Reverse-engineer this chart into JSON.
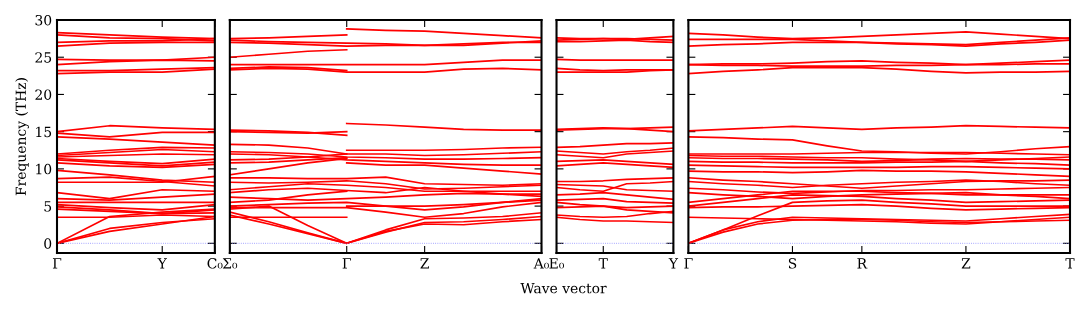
{
  "chart_data": [
    {
      "type": "line",
      "ylabel": "Frequency (THz)",
      "ylim": [
        -1.3,
        30
      ],
      "yticks": [
        0,
        5,
        10,
        15,
        20,
        25,
        30
      ],
      "categories": [
        "Γ",
        null,
        "Y",
        "C₀"
      ],
      "ref_lines": [
        {
          "axis": "y",
          "value": 0,
          "color": "#8080ff",
          "line_style": "dotted"
        }
      ],
      "series": [
        {
          "color": "#ff0000",
          "values": [
            28.3,
            28.0,
            27.7,
            27.5
          ]
        },
        {
          "color": "#ff0000",
          "values": [
            28.0,
            27.6,
            27.5,
            27.2
          ]
        },
        {
          "color": "#ff0000",
          "values": [
            27.0,
            27.2,
            27.2,
            27.5
          ]
        },
        {
          "color": "#ff0000",
          "values": [
            26.5,
            26.9,
            27.0,
            27.0
          ]
        },
        {
          "color": "#ff0000",
          "values": [
            24.7,
            24.6,
            24.6,
            25.0
          ]
        },
        {
          "color": "#ff0000",
          "values": [
            24.0,
            24.4,
            24.6,
            24.5
          ]
        },
        {
          "color": "#ff0000",
          "values": [
            23.2,
            23.2,
            23.4,
            23.6
          ]
        },
        {
          "color": "#ff0000",
          "values": [
            22.8,
            23.0,
            23.0,
            23.4
          ]
        },
        {
          "color": "#ff0000",
          "values": [
            15.0,
            15.8,
            15.5,
            15.3
          ]
        },
        {
          "color": "#ff0000",
          "values": [
            14.8,
            14.3,
            14.9,
            14.9
          ]
        },
        {
          "color": "#ff0000",
          "values": [
            14.3,
            14.0,
            13.6,
            13.2
          ]
        },
        {
          "color": "#ff0000",
          "values": [
            12.0,
            12.5,
            12.9,
            12.8
          ]
        },
        {
          "color": "#ff0000",
          "values": [
            11.8,
            12.2,
            12.6,
            12.3
          ]
        },
        {
          "color": "#ff0000",
          "values": [
            11.6,
            11.8,
            12.0,
            11.9
          ]
        },
        {
          "color": "#ff0000",
          "values": [
            11.4,
            11.0,
            10.7,
            11.3
          ]
        },
        {
          "color": "#ff0000",
          "values": [
            11.2,
            10.8,
            10.4,
            10.9
          ]
        },
        {
          "color": "#ff0000",
          "values": [
            10.8,
            10.4,
            10.2,
            10.6
          ]
        },
        {
          "color": "#ff0000",
          "values": [
            9.8,
            9.2,
            8.5,
            8.2
          ]
        },
        {
          "color": "#ff0000",
          "values": [
            8.7,
            8.9,
            8.3,
            7.7
          ]
        },
        {
          "color": "#ff0000",
          "values": [
            8.2,
            8.2,
            8.2,
            9.0
          ]
        },
        {
          "color": "#ff0000",
          "values": [
            6.8,
            6.0,
            7.2,
            7.0
          ]
        },
        {
          "color": "#ff0000",
          "values": [
            6.0,
            5.8,
            6.2,
            6.6
          ]
        },
        {
          "color": "#ff0000",
          "values": [
            5.5,
            5.5,
            5.5,
            5.5
          ]
        },
        {
          "color": "#ff0000",
          "values": [
            5.2,
            4.8,
            4.5,
            5.2
          ]
        },
        {
          "color": "#ff0000",
          "values": [
            4.9,
            4.5,
            4.0,
            4.5
          ]
        },
        {
          "color": "#ff0000",
          "values": [
            4.6,
            4.3,
            4.0,
            4.1
          ]
        },
        {
          "color": "#ff0000",
          "values": [
            3.5,
            3.5,
            3.8,
            3.6
          ]
        },
        {
          "color": "#ff0000",
          "values": [
            0,
            3.6,
            4.2,
            4.6
          ]
        },
        {
          "color": "#ff0000",
          "values": [
            0,
            2.0,
            2.8,
            3.3
          ]
        },
        {
          "color": "#ff0000",
          "values": [
            0,
            1.6,
            2.6,
            3.6
          ]
        }
      ]
    },
    {
      "type": "line",
      "tick_labels": "x",
      "ylim": [
        -1.3,
        30
      ],
      "yticks": [
        0,
        5,
        10,
        15,
        20,
        25,
        30
      ],
      "categories": [
        "Σ₀",
        null,
        null,
        "Γ",
        null,
        "Z",
        null,
        null,
        "A₀"
      ],
      "ref_lines": [
        {
          "axis": "y",
          "value": 0,
          "color": "#8080ff",
          "line_style": "dotted"
        }
      ],
      "series": [
        {
          "color": "#ff0000",
          "values": [
            27.5,
            27.6,
            27.8,
            28.0,
            null,
            null,
            null,
            null,
            null
          ]
        },
        {
          "color": "#ff0000",
          "values": [
            27.3,
            27.1,
            27.0,
            26.9,
            26.8,
            26.6,
            26.6,
            26.9,
            27.2
          ]
        },
        {
          "color": "#ff0000",
          "values": [
            27.0,
            26.9,
            26.7,
            26.5,
            26.6,
            26.6,
            26.8,
            27.0,
            27.0
          ]
        },
        {
          "color": "#ff0000",
          "values": [
            25.0,
            25.4,
            25.8,
            26.0,
            null,
            null,
            null,
            null,
            null
          ]
        },
        {
          "color": "#ff0000",
          "values": [
            24.0,
            24.0,
            24.0,
            24.0,
            24.0,
            24.0,
            24.3,
            24.6,
            24.6
          ]
        },
        {
          "color": "#ff0000",
          "values": [
            23.5,
            23.7,
            23.6,
            23.2,
            null,
            null,
            null,
            null,
            null
          ]
        },
        {
          "color": "#ff0000",
          "values": [
            23.3,
            23.5,
            23.4,
            23.0,
            23.0,
            23.0,
            23.4,
            23.5,
            23.3
          ]
        },
        {
          "color": "#ff0000",
          "values": [
            null,
            null,
            null,
            28.8,
            28.6,
            28.5,
            28.2,
            27.9,
            27.6
          ]
        },
        {
          "color": "#ff0000",
          "values": [
            15.2,
            15.1,
            14.9,
            14.5,
            null,
            null,
            null,
            null,
            null
          ]
        },
        {
          "color": "#ff0000",
          "values": [
            15.0,
            14.9,
            14.8,
            15.0,
            null,
            null,
            null,
            null,
            null
          ]
        },
        {
          "color": "#ff0000",
          "values": [
            null,
            null,
            null,
            16.1,
            15.9,
            15.6,
            15.3,
            15.2,
            15.2
          ]
        },
        {
          "color": "#ff0000",
          "values": [
            13.3,
            13.2,
            12.8,
            12.0,
            12.0,
            11.8,
            11.9,
            12.1,
            12.3
          ]
        },
        {
          "color": "#ff0000",
          "values": [
            12.3,
            12.2,
            12.0,
            11.6,
            11.5,
            11.3,
            11.3,
            11.4,
            11.5
          ]
        },
        {
          "color": "#ff0000",
          "values": [
            11.2,
            11.3,
            11.6,
            12.0,
            null,
            null,
            null,
            null,
            null
          ]
        },
        {
          "color": "#ff0000",
          "values": [
            12.0,
            11.9,
            11.6,
            11.2,
            11.0,
            10.8,
            10.6,
            10.5,
            10.5
          ]
        },
        {
          "color": "#ff0000",
          "values": [
            10.8,
            10.9,
            11.2,
            11.5,
            null,
            null,
            null,
            null,
            null
          ]
        },
        {
          "color": "#ff0000",
          "values": [
            9.2,
            10.0,
            10.8,
            11.4,
            null,
            null,
            null,
            null,
            null
          ]
        },
        {
          "color": "#ff0000",
          "values": [
            null,
            null,
            null,
            12.5,
            12.5,
            12.5,
            12.6,
            12.8,
            12.9
          ]
        },
        {
          "color": "#ff0000",
          "values": [
            null,
            null,
            null,
            10.8,
            10.5,
            10.5,
            10.1,
            9.7,
            9.3
          ]
        },
        {
          "color": "#ff0000",
          "values": [
            8.8,
            8.8,
            8.7,
            8.7,
            8.9,
            8.0,
            7.9,
            7.8,
            8.0
          ]
        },
        {
          "color": "#ff0000",
          "values": [
            8.2,
            8.1,
            8.2,
            8.4,
            8.0,
            7.3,
            7.4,
            7.6,
            7.8
          ]
        },
        {
          "color": "#ff0000",
          "values": [
            7.2,
            7.6,
            8.0,
            7.8,
            7.5,
            7.0,
            7.0,
            7.0,
            7.0
          ]
        },
        {
          "color": "#ff0000",
          "values": [
            6.8,
            7.2,
            7.4,
            7.1,
            6.8,
            7.5,
            7.0,
            6.6,
            6.6
          ]
        },
        {
          "color": "#ff0000",
          "values": [
            6.2,
            6.0,
            5.8,
            6.0,
            6.2,
            6.5,
            6.7,
            6.6,
            6.3
          ]
        },
        {
          "color": "#ff0000",
          "values": [
            5.5,
            5.8,
            6.5,
            7.0,
            null,
            null,
            null,
            null,
            null
          ]
        },
        {
          "color": "#ff0000",
          "values": [
            5.0,
            5.2,
            5.4,
            5.5,
            5.0,
            4.5,
            4.9,
            5.5,
            6.0
          ]
        },
        {
          "color": "#ff0000",
          "values": [
            4.8,
            4.8,
            4.8,
            4.8,
            4.2,
            3.5,
            4.0,
            4.9,
            5.5
          ]
        },
        {
          "color": "#ff0000",
          "values": [
            null,
            null,
            null,
            5.0,
            5.0,
            5.0,
            5.2,
            5.5,
            5.8
          ]
        },
        {
          "color": "#ff0000",
          "values": [
            3.5,
            3.5,
            3.5,
            3.5,
            null,
            null,
            null,
            null,
            null
          ]
        },
        {
          "color": "#ff0000",
          "values": [
            4.6,
            5.0,
            2.4,
            0,
            1.8,
            3.3,
            3.4,
            3.6,
            4.1
          ]
        },
        {
          "color": "#ff0000",
          "values": [
            4.2,
            2.9,
            1.4,
            0,
            1.5,
            2.8,
            2.9,
            3.2,
            3.6
          ]
        },
        {
          "color": "#ff0000",
          "values": [
            3.8,
            2.6,
            1.3,
            0,
            1.6,
            2.6,
            2.5,
            2.9,
            3.2
          ]
        }
      ]
    },
    {
      "type": "line",
      "tick_labels": "x",
      "xlabel": "Wave vector",
      "ylim": [
        -1.3,
        30
      ],
      "yticks": [
        0,
        5,
        10,
        15,
        20,
        25,
        30
      ],
      "categories": [
        "E₀",
        null,
        "T",
        null,
        null,
        "Y"
      ],
      "ref_lines": [
        {
          "axis": "y",
          "value": 0,
          "color": "#8080ff",
          "line_style": "dotted"
        }
      ],
      "series": [
        {
          "color": "#ff0000",
          "values": [
            27.6,
            27.5,
            27.5,
            27.4,
            27.6,
            27.8
          ]
        },
        {
          "color": "#ff0000",
          "values": [
            27.3,
            27.4,
            27.5,
            27.5,
            27.4,
            27.3
          ]
        },
        {
          "color": "#ff0000",
          "values": [
            27.1,
            27.1,
            27.2,
            27.3,
            27.1,
            27.0
          ]
        },
        {
          "color": "#ff0000",
          "values": [
            24.7,
            24.6,
            24.6,
            24.6,
            24.6,
            24.6
          ]
        },
        {
          "color": "#ff0000",
          "values": [
            23.5,
            23.3,
            23.2,
            23.3,
            23.3,
            23.3
          ]
        },
        {
          "color": "#ff0000",
          "values": [
            23.0,
            23.0,
            23.0,
            23.0,
            23.2,
            23.3
          ]
        },
        {
          "color": "#ff0000",
          "values": [
            15.3,
            15.4,
            15.5,
            15.4,
            15.5,
            15.6
          ]
        },
        {
          "color": "#ff0000",
          "values": [
            15.2,
            15.3,
            15.4,
            15.4,
            15.2,
            15.0
          ]
        },
        {
          "color": "#ff0000",
          "values": [
            12.9,
            13.0,
            13.2,
            13.4,
            13.4,
            13.5
          ]
        },
        {
          "color": "#ff0000",
          "values": [
            12.4,
            12.2,
            12.0,
            12.3,
            12.5,
            12.8
          ]
        },
        {
          "color": "#ff0000",
          "values": [
            11.9,
            11.7,
            11.5,
            12.0,
            12.2,
            12.4
          ]
        },
        {
          "color": "#ff0000",
          "values": [
            11.0,
            11.1,
            11.2,
            11.0,
            10.8,
            10.6
          ]
        },
        {
          "color": "#ff0000",
          "values": [
            10.4,
            10.6,
            10.8,
            10.6,
            10.4,
            10.2
          ]
        },
        {
          "color": "#ff0000",
          "values": [
            8.3,
            8.3,
            8.4,
            8.6,
            8.7,
            8.8
          ]
        },
        {
          "color": "#ff0000",
          "values": [
            7.9,
            7.8,
            7.7,
            7.2,
            7.1,
            7.0
          ]
        },
        {
          "color": "#ff0000",
          "values": [
            7.5,
            7.2,
            7.0,
            8.0,
            8.1,
            8.3
          ]
        },
        {
          "color": "#ff0000",
          "values": [
            6.5,
            6.6,
            6.8,
            6.5,
            6.2,
            5.9
          ]
        },
        {
          "color": "#ff0000",
          "values": [
            5.8,
            5.9,
            6.0,
            5.6,
            5.5,
            5.4
          ]
        },
        {
          "color": "#ff0000",
          "values": [
            5.5,
            5.2,
            5.0,
            4.8,
            4.9,
            5.0
          ]
        },
        {
          "color": "#ff0000",
          "values": [
            4.8,
            4.9,
            5.0,
            4.5,
            4.3,
            4.1
          ]
        },
        {
          "color": "#ff0000",
          "values": [
            3.8,
            3.6,
            3.5,
            3.6,
            4.0,
            4.3
          ]
        },
        {
          "color": "#ff0000",
          "values": [
            3.5,
            3.2,
            3.0,
            3.0,
            2.9,
            2.8
          ]
        }
      ]
    },
    {
      "type": "line",
      "tick_labels": "x",
      "ylim": [
        -1.3,
        30
      ],
      "yticks": [
        0,
        5,
        10,
        15,
        20,
        25,
        30
      ],
      "categories": [
        "Γ",
        null,
        null,
        "S",
        null,
        "R",
        null,
        null,
        "Z",
        null,
        null,
        "T"
      ],
      "ref_lines": [
        {
          "axis": "y",
          "value": 0,
          "color": "#8080ff",
          "line_style": "dotted"
        }
      ],
      "series": [
        {
          "color": "#ff0000",
          "values": [
            28.2,
            28.0,
            27.7,
            27.5,
            27.6,
            27.8,
            28.0,
            28.2,
            28.4,
            28.1,
            27.8,
            27.5
          ]
        },
        {
          "color": "#ff0000",
          "values": [
            27.4,
            27.4,
            27.4,
            27.4,
            27.2,
            27.0,
            26.9,
            26.8,
            26.7,
            27.0,
            27.3,
            27.6
          ]
        },
        {
          "color": "#ff0000",
          "values": [
            26.5,
            26.7,
            26.8,
            27.0,
            27.0,
            27.0,
            26.8,
            26.7,
            26.5,
            26.8,
            27.0,
            27.3
          ]
        },
        {
          "color": "#ff0000",
          "values": [
            24.0,
            24.1,
            24.1,
            24.2,
            24.4,
            24.5,
            24.3,
            24.2,
            24.0,
            24.2,
            24.4,
            24.6
          ]
        },
        {
          "color": "#ff0000",
          "values": [
            24.0,
            23.9,
            23.9,
            23.8,
            23.8,
            23.8,
            23.9,
            23.9,
            24.0,
            24.0,
            24.1,
            24.1
          ]
        },
        {
          "color": "#ff0000",
          "values": [
            22.8,
            23.1,
            23.3,
            23.6,
            23.6,
            23.6,
            23.4,
            23.1,
            22.9,
            23.0,
            23.0,
            23.1
          ]
        },
        {
          "color": "#ff0000",
          "values": [
            15.1,
            15.3,
            15.5,
            15.7,
            15.5,
            15.3,
            15.5,
            15.6,
            15.8,
            15.7,
            15.6,
            15.5
          ]
        },
        {
          "color": "#ff0000",
          "values": [
            14.3,
            14.2,
            14.0,
            13.9,
            13.1,
            12.4,
            12.3,
            12.1,
            12.0,
            12.3,
            12.7,
            13.0
          ]
        },
        {
          "color": "#ff0000",
          "values": [
            12.0,
            12.0,
            12.0,
            12.0,
            12.1,
            12.2,
            12.2,
            12.2,
            12.2,
            12.1,
            12.0,
            11.9
          ]
        },
        {
          "color": "#ff0000",
          "values": [
            11.8,
            11.7,
            11.7,
            11.6,
            11.5,
            11.5,
            11.3,
            11.2,
            11.0,
            11.2,
            11.4,
            11.6
          ]
        },
        {
          "color": "#ff0000",
          "values": [
            11.5,
            11.4,
            11.4,
            11.3,
            11.2,
            11.0,
            11.1,
            11.3,
            11.4,
            11.3,
            11.3,
            11.2
          ]
        },
        {
          "color": "#ff0000",
          "values": [
            11.0,
            10.9,
            10.9,
            10.8,
            10.8,
            10.8,
            10.9,
            10.9,
            11.0,
            10.8,
            10.7,
            10.5
          ]
        },
        {
          "color": "#ff0000",
          "values": [
            10.5,
            10.4,
            10.3,
            10.2,
            10.2,
            10.2,
            10.2,
            10.3,
            10.3,
            10.2,
            10.1,
            10.0
          ]
        },
        {
          "color": "#ff0000",
          "values": [
            9.7,
            9.6,
            9.6,
            9.5,
            9.6,
            9.8,
            9.7,
            9.7,
            9.6,
            9.4,
            9.2,
            9.0
          ]
        },
        {
          "color": "#ff0000",
          "values": [
            8.8,
            8.5,
            8.3,
            8.0,
            7.7,
            7.4,
            7.7,
            8.0,
            8.3,
            8.4,
            8.4,
            8.5
          ]
        },
        {
          "color": "#ff0000",
          "values": [
            8.3,
            8.0,
            7.8,
            7.5,
            7.8,
            8.0,
            8.2,
            8.3,
            8.5,
            8.3,
            8.0,
            7.8
          ]
        },
        {
          "color": "#ff0000",
          "values": [
            7.4,
            7.2,
            6.9,
            6.7,
            6.9,
            7.1,
            7.1,
            7.2,
            7.2,
            7.3,
            7.4,
            7.5
          ]
        },
        {
          "color": "#ff0000",
          "values": [
            6.8,
            6.5,
            6.3,
            6.0,
            6.3,
            6.5,
            6.6,
            6.7,
            6.8,
            6.5,
            6.3,
            6.0
          ]
        },
        {
          "color": "#ff0000",
          "values": [
            5.5,
            6.0,
            6.5,
            7.0,
            7.0,
            7.0,
            6.8,
            6.7,
            6.5,
            6.5,
            6.5,
            6.5
          ]
        },
        {
          "color": "#ff0000",
          "values": [
            5.0,
            5.5,
            6.0,
            6.5,
            6.4,
            6.3,
            6.0,
            5.8,
            5.5,
            5.6,
            5.7,
            5.8
          ]
        },
        {
          "color": "#ff0000",
          "values": [
            4.8,
            4.9,
            4.9,
            5.0,
            5.1,
            5.2,
            5.0,
            4.7,
            4.5,
            4.6,
            4.7,
            4.8
          ]
        },
        {
          "color": "#ff0000",
          "values": [
            3.5,
            3.4,
            3.3,
            3.2,
            3.1,
            3.0,
            2.9,
            2.7,
            2.6,
            2.9,
            3.2,
            3.5
          ]
        },
        {
          "color": "#ff0000",
          "values": [
            0,
            1.8,
            3.7,
            5.5,
            5.7,
            5.8,
            5.5,
            5.3,
            5.0,
            5.0,
            5.0,
            5.0
          ]
        },
        {
          "color": "#ff0000",
          "values": [
            0,
            1.8,
            2.9,
            3.5,
            3.4,
            3.3,
            3.2,
            3.1,
            3.0,
            3.3,
            3.6,
            3.9
          ]
        },
        {
          "color": "#ff0000",
          "values": [
            0,
            1.5,
            2.6,
            3.1,
            3.2,
            3.2,
            3.1,
            2.9,
            2.8,
            2.9,
            3.0,
            3.1
          ]
        }
      ]
    }
  ]
}
